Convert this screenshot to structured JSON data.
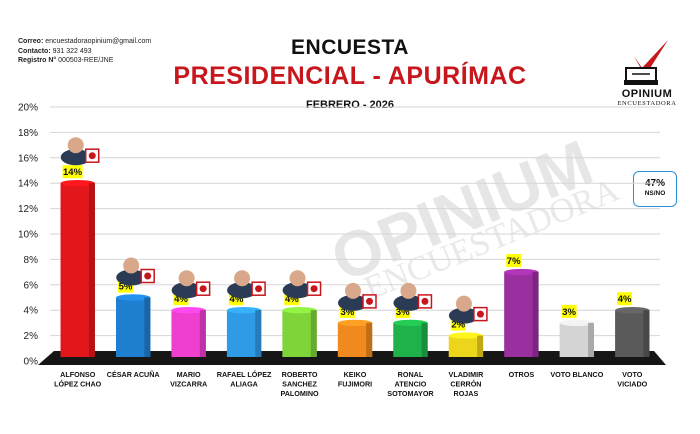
{
  "contact": {
    "email_label": "Correo:",
    "email": "encuestadoraopinium@gmail.com",
    "phone_label": "Contacto:",
    "phone": "931 322 493",
    "registry_label": "Registro N°",
    "registry": "000503-REE/JNE"
  },
  "header": {
    "title": "ENCUESTA",
    "title2": "PRESIDENCIAL - APURÍMAC",
    "subtitle": "FEBRERO -  2026"
  },
  "logo": {
    "name": "OPINIUM",
    "sub": "ENCUESTADORA",
    "watermark_line1": "OPINIUM",
    "watermark_line2": "ENCUESTADORA"
  },
  "ns": {
    "value": "47%",
    "label": "NS/NO",
    "border_color": "#2a8fd6"
  },
  "colors": {
    "label_bg": "#ffff00",
    "title_red": "#c8161d",
    "floor": "#161616",
    "grid": "#d6d6d6"
  },
  "chart_data": {
    "type": "bar",
    "title": "PRESIDENCIAL - APURÍMAC",
    "subtitle": "FEBRERO -  2026",
    "ylim": [
      0,
      20
    ],
    "yticks": [
      "0%",
      "2%",
      "4%",
      "6%",
      "8%",
      "10%",
      "12%",
      "14%",
      "16%",
      "18%",
      "20%"
    ],
    "grid": true,
    "categories": [
      [
        "ALFONSO",
        "LÓPEZ CHAO"
      ],
      [
        "CÉSAR ACUÑA"
      ],
      [
        "MARIO",
        "VIZCARRA"
      ],
      [
        "RAFAEL LÓPEZ",
        "ALIAGA"
      ],
      [
        "ROBERTO",
        "SANCHEZ",
        "PALOMINO"
      ],
      [
        "KEIKO",
        "FUJIMORI"
      ],
      [
        "RONAL",
        "ATENCIO",
        "SOTOMAYOR"
      ],
      [
        "VLADIMIR",
        "CERRÓN",
        "ROJAS"
      ],
      [
        "OTROS"
      ],
      [
        "VOTO BLANCO"
      ],
      [
        "VOTO",
        "VICIADO"
      ]
    ],
    "values": [
      14,
      5,
      4,
      4,
      4,
      3,
      3,
      2,
      7,
      3,
      4
    ],
    "labels": [
      "14%",
      "5%",
      "4%",
      "4%",
      "4%",
      "3%",
      "3%",
      "2%",
      "7%",
      "3%",
      "4%"
    ],
    "bar_colors": [
      "#e3161b",
      "#1f7fd0",
      "#ef3fcf",
      "#2f9be6",
      "#7fd43a",
      "#f08a1e",
      "#1fb24a",
      "#ecd51a",
      "#9a2fa0",
      "#d4d4d4",
      "#5a5a5a"
    ],
    "party_icons": [
      "party-icon-rooster",
      "party-icon-a",
      "party-icon-1",
      "party-icon-r",
      "party-icon-jp",
      "party-icon-k",
      "party-icon-tree",
      "party-icon-pencil",
      "",
      "",
      ""
    ]
  }
}
